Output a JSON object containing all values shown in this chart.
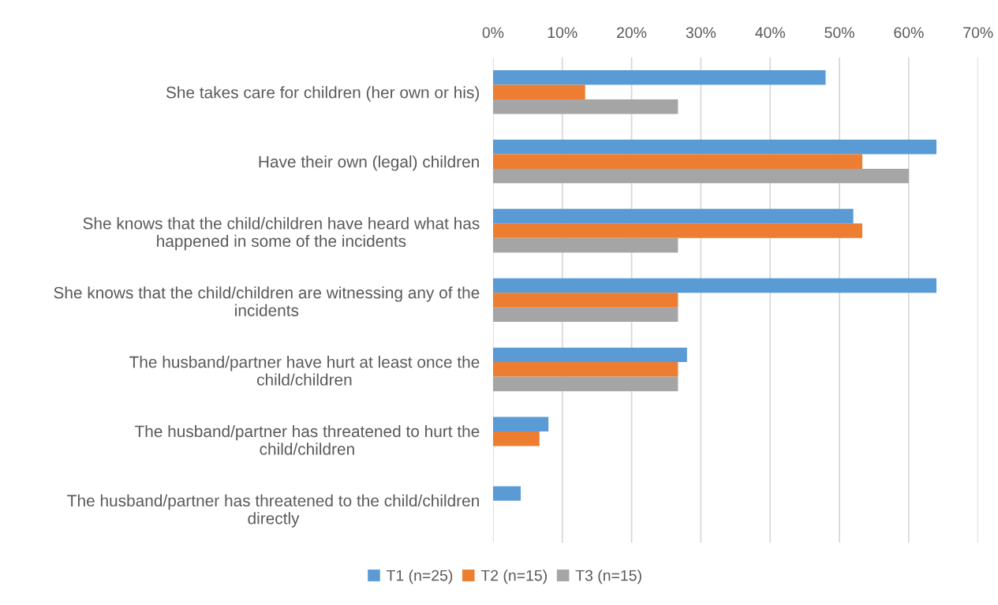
{
  "chart_data": {
    "type": "bar",
    "orientation": "horizontal",
    "categories": [
      "She takes care for children (her own or his)",
      "Have their own (legal) children",
      "She knows that the child/children have heard what has happened in some of the incidents",
      "She knows that the child/children are witnessing any of the incidents",
      "The husband/partner have hurt at least once the child/children",
      "The husband/partner has threatened to hurt the child/children",
      "The husband/partner has threatened to the child/children directly"
    ],
    "series": [
      {
        "name": "T1 (n=25)",
        "color": "#5b9bd5",
        "values": [
          48,
          64,
          52,
          64,
          28,
          8,
          4
        ]
      },
      {
        "name": "T2 (n=15)",
        "color": "#ed7d31",
        "values": [
          13.3,
          53.3,
          53.3,
          26.7,
          26.7,
          6.7,
          0
        ]
      },
      {
        "name": "T3 (n=15)",
        "color": "#a5a5a5",
        "values": [
          26.7,
          60,
          26.7,
          26.7,
          26.7,
          0,
          0
        ]
      }
    ],
    "xlim": [
      0,
      70
    ],
    "xticks": [
      {
        "value": 0,
        "label": "0%"
      },
      {
        "value": 10,
        "label": "10%"
      },
      {
        "value": 20,
        "label": "20%"
      },
      {
        "value": 30,
        "label": "30%"
      },
      {
        "value": 40,
        "label": "40%"
      },
      {
        "value": 50,
        "label": "50%"
      },
      {
        "value": 60,
        "label": "60%"
      },
      {
        "value": 70,
        "label": "70%"
      }
    ],
    "grid": "x",
    "legend": "bottom"
  }
}
